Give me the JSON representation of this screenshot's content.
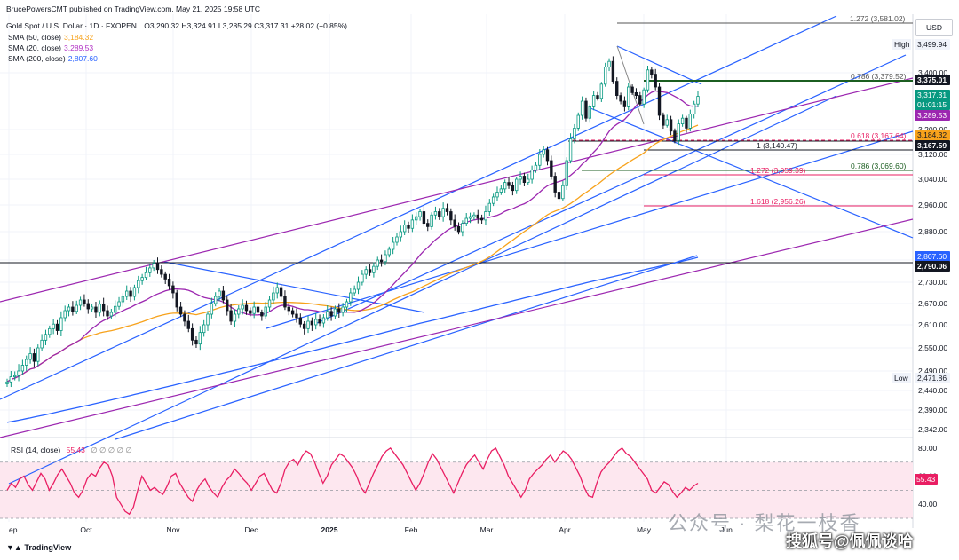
{
  "header": {
    "publisher": "BrucePowersCMT published on TradingView.com, May 21, 2025 19:58 UTC",
    "symbol": "Gold Spot / U.S. Dollar · 1D · FXOPEN",
    "ohlc": "O3,290.32  H3,324.91  L3,285.29  C3,317.31  +28.02 (+0.85%)"
  },
  "legend": [
    {
      "label": "SMA (50, close)",
      "value": "3,184.32",
      "color": "#f7a21b"
    },
    {
      "label": "SMA (20, close)",
      "value": "3,289.53",
      "color": "#b02fc4"
    },
    {
      "label": "SMA (200, close)",
      "value": "2,807.60",
      "color": "#2962ff"
    }
  ],
  "currency": "USD",
  "brand": "TradingView",
  "watermark": {
    "line1": "公众号 · 梨花一枝香",
    "line2": "搜狐号@佩佩谈哈"
  },
  "chart_data": {
    "type": "candlestick",
    "y_ticks": [
      "3,400.00",
      "3,200.00",
      "3,120.00",
      "3,040.00",
      "2,960.00",
      "2,880.00",
      "2,800.00",
      "2,730.00",
      "2,670.00",
      "2,610.00",
      "2,550.00",
      "2,490.00",
      "2,440.00",
      "2,390.00",
      "2,342.00"
    ],
    "x_ticks": [
      "ep",
      "Oct",
      "Nov",
      "Dec",
      "2025",
      "Feb",
      "Mar",
      "Apr",
      "May",
      "Jun"
    ],
    "price_labels": [
      {
        "text": "High",
        "value": "3,499.94",
        "style": "plain"
      },
      {
        "text": "",
        "value": "3,375.01",
        "style": "black"
      },
      {
        "text": "",
        "value": "3,317.31",
        "style": "green"
      },
      {
        "text": "",
        "value": "01:01:15",
        "style": "green"
      },
      {
        "text": "",
        "value": "3,289.53",
        "style": "purple"
      },
      {
        "text": "",
        "value": "3,184.32",
        "style": "orange"
      },
      {
        "text": "",
        "value": "3,167.59",
        "style": "black"
      },
      {
        "text": "",
        "value": "2,807.60",
        "style": "blue"
      },
      {
        "text": "",
        "value": "2,790.06",
        "style": "black"
      },
      {
        "text": "Low",
        "value": "2,471.86",
        "style": "plain"
      }
    ],
    "fib_labels": [
      {
        "text": "1.272 (3,581.02)",
        "color": "#555555"
      },
      {
        "text": "0.786 (3,379.52)",
        "color": "#555555"
      },
      {
        "text": "0.618 (3,167.64)",
        "color": "#e91e63"
      },
      {
        "text": "1 (3,140.47)",
        "color": "#131722"
      },
      {
        "text": "0.786 (3,069.60)",
        "color": "#1b5e20"
      },
      {
        "text": "1.272 (3,059.39)",
        "color": "#e91e63"
      },
      {
        "text": "1.618 (2,956.26)",
        "color": "#e91e63"
      }
    ],
    "closes": [
      2462,
      2475,
      2478,
      2490,
      2505,
      2520,
      2535,
      2515,
      2550,
      2570,
      2585,
      2600,
      2612,
      2595,
      2630,
      2650,
      2660,
      2648,
      2665,
      2680,
      2670,
      2655,
      2660,
      2645,
      2668,
      2650,
      2635,
      2645,
      2662,
      2675,
      2690,
      2705,
      2690,
      2715,
      2735,
      2745,
      2760,
      2775,
      2790,
      2770,
      2755,
      2740,
      2720,
      2700,
      2660,
      2640,
      2620,
      2600,
      2570,
      2560,
      2590,
      2610,
      2640,
      2670,
      2690,
      2705,
      2680,
      2650,
      2620,
      2640,
      2655,
      2665,
      2650,
      2642,
      2660,
      2645,
      2635,
      2660,
      2680,
      2700,
      2715,
      2690,
      2660,
      2650,
      2640,
      2630,
      2612,
      2600,
      2620,
      2610,
      2625,
      2615,
      2630,
      2648,
      2635,
      2655,
      2645,
      2660,
      2675,
      2700,
      2710,
      2730,
      2755,
      2770,
      2760,
      2780,
      2800,
      2795,
      2815,
      2830,
      2850,
      2865,
      2880,
      2900,
      2890,
      2915,
      2925,
      2940,
      2905,
      2895,
      2930,
      2940,
      2925,
      2950,
      2940,
      2915,
      2895,
      2880,
      2905,
      2920,
      2925,
      2930,
      2920,
      2915,
      2940,
      2965,
      2985,
      3000,
      3010,
      3030,
      3020,
      3005,
      3040,
      3050,
      3030,
      3040,
      3070,
      3085,
      3120,
      3135,
      3100,
      3050,
      3000,
      2980,
      3020,
      3100,
      3170,
      3205,
      3250,
      3300,
      3240,
      3280,
      3320,
      3310,
      3360,
      3420,
      3440,
      3370,
      3320,
      3300,
      3280,
      3350,
      3330,
      3320,
      3290,
      3340,
      3410,
      3395,
      3350,
      3250,
      3215,
      3235,
      3195,
      3165,
      3220,
      3240,
      3205,
      3255,
      3290,
      3317
    ],
    "series": [
      {
        "name": "SMA (50, close)",
        "values": []
      },
      {
        "name": "SMA (20, close)",
        "values": []
      },
      {
        "name": "SMA (200, close)",
        "values": []
      }
    ],
    "rsi": {
      "label": "RSI (14, close)",
      "value": "55.43",
      "y_ticks": [
        "80.00",
        "60.00",
        "40.00"
      ],
      "values": [
        50,
        55,
        52,
        58,
        60,
        54,
        50,
        56,
        62,
        58,
        50,
        55,
        61,
        65,
        60,
        55,
        48,
        45,
        50,
        58,
        62,
        60,
        66,
        70,
        68,
        60,
        45,
        40,
        35,
        33,
        38,
        50,
        60,
        55,
        50,
        52,
        49,
        47,
        53,
        60,
        62,
        55,
        50,
        45,
        42,
        50,
        55,
        58,
        52,
        48,
        45,
        52,
        57,
        60,
        65,
        62,
        58,
        55,
        50,
        55,
        60,
        62,
        56,
        50,
        48,
        55,
        65,
        70,
        72,
        68,
        74,
        78,
        76,
        70,
        62,
        55,
        60,
        68,
        72,
        76,
        74,
        70,
        66,
        60,
        52,
        48,
        55,
        62,
        68,
        74,
        78,
        80,
        76,
        72,
        68,
        62,
        56,
        50,
        55,
        62,
        70,
        76,
        72,
        66,
        60,
        54,
        48,
        55,
        62,
        68,
        72,
        75,
        70,
        65,
        72,
        78,
        80,
        74,
        68,
        60,
        55,
        50,
        45,
        50,
        58,
        62,
        65,
        68,
        72,
        75,
        70,
        74,
        78,
        76,
        72,
        66,
        60,
        52,
        46,
        45,
        55,
        63,
        67,
        70,
        74,
        78,
        80,
        76,
        74,
        70,
        66,
        62,
        58,
        50,
        48,
        52,
        56,
        54,
        49,
        45,
        48,
        52,
        50,
        53,
        55
      ]
    }
  }
}
